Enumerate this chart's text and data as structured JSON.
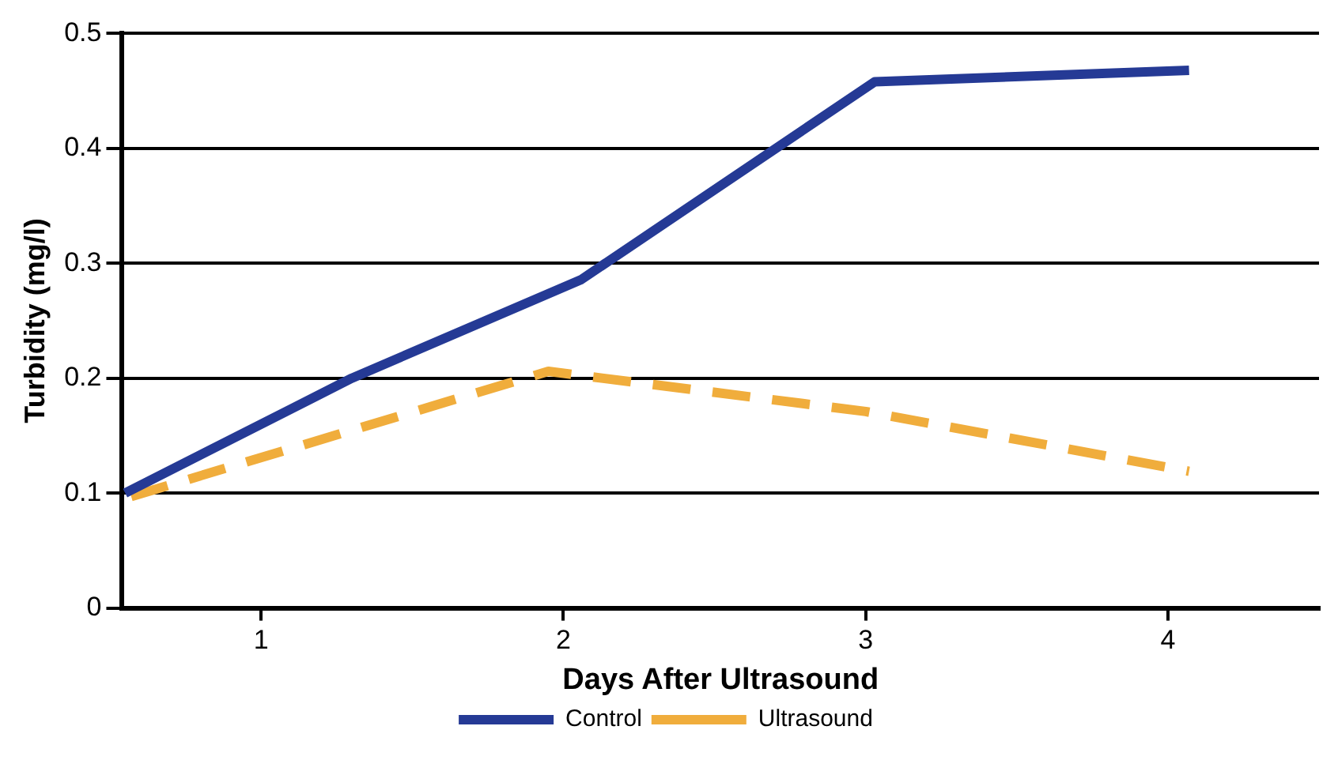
{
  "chart_data": {
    "type": "line",
    "xlabel": "Days After Ultrasound",
    "ylabel": "Turbidity (mg/l)",
    "xlim": [
      0.54,
      4.5
    ],
    "xticks": [
      1,
      2,
      3,
      4
    ],
    "ylim": [
      0,
      0.5
    ],
    "yticks": [
      0,
      0.1,
      0.2,
      0.3,
      0.4,
      0.5
    ],
    "grid": "y",
    "legend": "bottom",
    "marker": "none",
    "series": [
      {
        "name": "Control",
        "color": "#253a95",
        "x": [
          0.55,
          1.3,
          2.06,
          3.03,
          4.07
        ],
        "values": [
          0.1,
          0.2,
          0.286,
          0.458,
          0.468
        ],
        "line_style": "solid"
      },
      {
        "name": "Ultrasound",
        "color": "#f0ad3c",
        "x": [
          0.57,
          1.95,
          3.0,
          4.07
        ],
        "values": [
          0.097,
          0.206,
          0.171,
          0.119
        ],
        "line_style": "dashed"
      }
    ]
  }
}
